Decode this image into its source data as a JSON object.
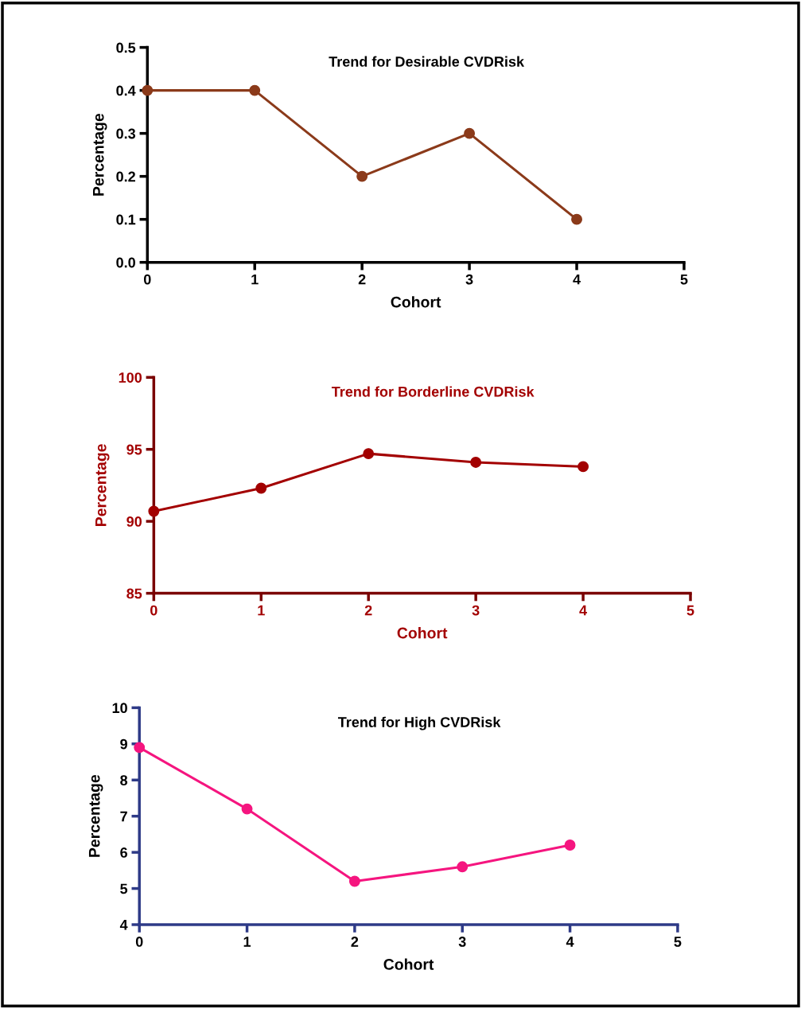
{
  "chart_data": [
    {
      "type": "line",
      "title": "Trend for Desirable CVDRisk",
      "xlabel": "Cohort",
      "ylabel": "Percentage",
      "x": [
        0,
        1,
        2,
        3,
        4
      ],
      "series": [
        {
          "color": "#8b3a1a",
          "values": [
            0.4,
            0.4,
            0.2,
            0.3,
            0.1
          ]
        }
      ],
      "xlim": [
        0,
        5
      ],
      "xticks": [
        0,
        1,
        2,
        3,
        4,
        5
      ],
      "ylim": [
        0,
        0.5
      ],
      "yticks": [
        {
          "value": 0,
          "label": "0.0"
        },
        0.1,
        0.2,
        0.3,
        0.4,
        0.5
      ],
      "marker": "circle",
      "line_style": "solid",
      "grid": false
    },
    {
      "type": "line",
      "title": "Trend for Borderline CVDRisk",
      "xlabel": "Cohort",
      "ylabel": "Percentage",
      "x": [
        0,
        1,
        2,
        3,
        4
      ],
      "series": [
        {
          "color": "#a30000",
          "values": [
            90.7,
            92.3,
            94.7,
            94.1,
            93.8
          ]
        }
      ],
      "xlim": [
        0,
        5
      ],
      "xticks": [
        0,
        1,
        2,
        3,
        4,
        5
      ],
      "ylim": [
        85,
        100
      ],
      "yticks": [
        85,
        90,
        95,
        100
      ],
      "marker": "circle",
      "line_style": "solid",
      "grid": false
    },
    {
      "type": "line",
      "title": "Trend for High CVDRisk",
      "xlabel": "Cohort",
      "ylabel": "Percentage",
      "x": [
        0,
        1,
        2,
        3,
        4
      ],
      "series": [
        {
          "color": "#f5157f",
          "values": [
            8.9,
            7.2,
            5.2,
            5.6,
            6.2
          ]
        }
      ],
      "xlim": [
        0,
        5
      ],
      "xticks": [
        0,
        1,
        2,
        3,
        4,
        5
      ],
      "ylim": [
        4,
        10
      ],
      "yticks": [
        4,
        5,
        6,
        7,
        8,
        9,
        10
      ],
      "marker": "circle",
      "line_style": "solid",
      "grid": false
    }
  ]
}
